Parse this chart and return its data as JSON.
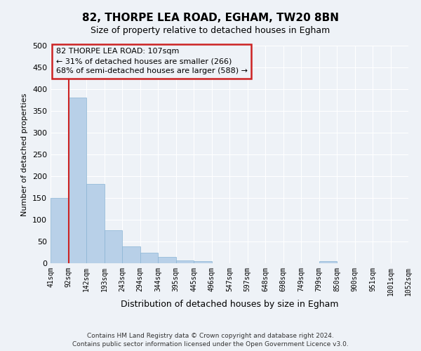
{
  "title": "82, THORPE LEA ROAD, EGHAM, TW20 8BN",
  "subtitle": "Size of property relative to detached houses in Egham",
  "xlabel": "Distribution of detached houses by size in Egham",
  "ylabel": "Number of detached properties",
  "bin_labels": [
    "41sqm",
    "92sqm",
    "142sqm",
    "193sqm",
    "243sqm",
    "294sqm",
    "344sqm",
    "395sqm",
    "445sqm",
    "496sqm",
    "547sqm",
    "597sqm",
    "648sqm",
    "698sqm",
    "749sqm",
    "799sqm",
    "850sqm",
    "900sqm",
    "951sqm",
    "1001sqm",
    "1052sqm"
  ],
  "bar_values": [
    150,
    380,
    183,
    76,
    38,
    25,
    15,
    7,
    5,
    0,
    0,
    0,
    0,
    0,
    0,
    5,
    0,
    0,
    0,
    0
  ],
  "bar_color": "#b8d0e8",
  "bar_edge_color": "#8ab4d4",
  "vline_x_idx": 1,
  "vline_color": "#cc2222",
  "ylim": [
    0,
    500
  ],
  "yticks": [
    0,
    50,
    100,
    150,
    200,
    250,
    300,
    350,
    400,
    450,
    500
  ],
  "annotation_title": "82 THORPE LEA ROAD: 107sqm",
  "annotation_line1": "← 31% of detached houses are smaller (266)",
  "annotation_line2": "68% of semi-detached houses are larger (588) →",
  "annotation_box_color": "#cc2222",
  "footer_line1": "Contains HM Land Registry data © Crown copyright and database right 2024.",
  "footer_line2": "Contains public sector information licensed under the Open Government Licence v3.0.",
  "bg_color": "#eef2f7",
  "grid_color": "#ffffff"
}
